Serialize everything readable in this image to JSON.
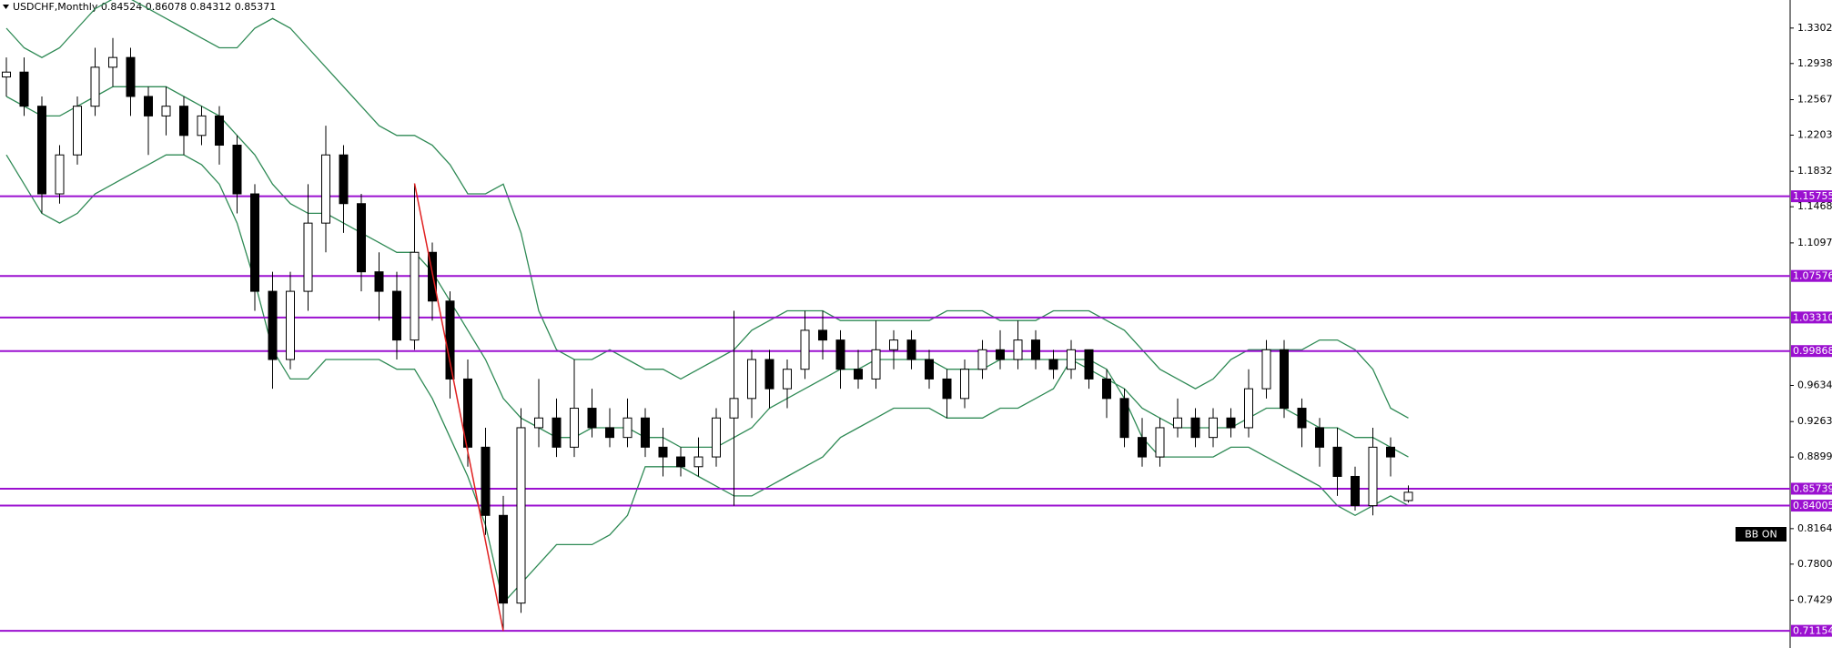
{
  "chart_data": {
    "type": "candlestick",
    "title": "USDCHF,Monthly  0.84524 0.86078 0.84312 0.85371",
    "button": "BB ON",
    "ylim": [
      0.6939,
      1.359
    ],
    "yticks": [
      {
        "value": 1.3302,
        "label": "1.33020"
      },
      {
        "value": 1.2938,
        "label": "1.29380"
      },
      {
        "value": 1.2567,
        "label": "1.25670"
      },
      {
        "value": 1.2203,
        "label": "1.22030"
      },
      {
        "value": 1.1832,
        "label": "1.18320"
      },
      {
        "value": 1.1468,
        "label": "1.14680"
      },
      {
        "value": 1.1097,
        "label": "1.10970"
      },
      {
        "value": 0.9634,
        "label": "0.96340"
      },
      {
        "value": 0.9263,
        "label": "0.92630"
      },
      {
        "value": 0.8899,
        "label": "0.88990"
      },
      {
        "value": 0.8164,
        "label": "0.81640"
      },
      {
        "value": 0.78,
        "label": "0.78000"
      },
      {
        "value": 0.7429,
        "label": "0.74290"
      }
    ],
    "level_color": "#9b10d0",
    "levels": [
      1.15755,
      1.07576,
      {
        "value": 1.0331,
        "label": "1.03310"
      },
      0.99868,
      0.85739,
      0.84005,
      0.71154
    ],
    "trendline": {
      "color": "#e02020",
      "points": [
        [
          23,
          1.1708
        ],
        [
          28,
          0.71154
        ]
      ]
    },
    "band_color": "#2f8a55",
    "candles": [
      [
        1.28,
        1.3,
        1.26,
        1.285
      ],
      [
        1.285,
        1.3,
        1.24,
        1.25
      ],
      [
        1.25,
        1.26,
        1.14,
        1.16
      ],
      [
        1.16,
        1.21,
        1.15,
        1.2
      ],
      [
        1.2,
        1.26,
        1.19,
        1.25
      ],
      [
        1.25,
        1.31,
        1.24,
        1.29
      ],
      [
        1.29,
        1.32,
        1.27,
        1.3
      ],
      [
        1.3,
        1.31,
        1.24,
        1.26
      ],
      [
        1.26,
        1.27,
        1.2,
        1.24
      ],
      [
        1.24,
        1.27,
        1.22,
        1.25
      ],
      [
        1.25,
        1.26,
        1.2,
        1.22
      ],
      [
        1.22,
        1.25,
        1.21,
        1.24
      ],
      [
        1.24,
        1.25,
        1.19,
        1.21
      ],
      [
        1.21,
        1.22,
        1.14,
        1.16
      ],
      [
        1.16,
        1.17,
        1.04,
        1.06
      ],
      [
        1.06,
        1.08,
        0.96,
        0.99
      ],
      [
        0.99,
        1.08,
        0.98,
        1.06
      ],
      [
        1.06,
        1.17,
        1.04,
        1.13
      ],
      [
        1.13,
        1.23,
        1.1,
        1.2
      ],
      [
        1.2,
        1.21,
        1.12,
        1.15
      ],
      [
        1.15,
        1.16,
        1.06,
        1.08
      ],
      [
        1.08,
        1.1,
        1.03,
        1.06
      ],
      [
        1.06,
        1.08,
        0.99,
        1.01
      ],
      [
        1.01,
        1.1708,
        1.0,
        1.1
      ],
      [
        1.1,
        1.11,
        1.03,
        1.05
      ],
      [
        1.05,
        1.06,
        0.95,
        0.97
      ],
      [
        0.97,
        0.99,
        0.88,
        0.9
      ],
      [
        0.9,
        0.92,
        0.81,
        0.83
      ],
      [
        0.83,
        0.85,
        0.71154,
        0.74
      ],
      [
        0.74,
        0.94,
        0.73,
        0.92
      ],
      [
        0.92,
        0.97,
        0.9,
        0.93
      ],
      [
        0.93,
        0.95,
        0.89,
        0.9
      ],
      [
        0.9,
        0.99,
        0.89,
        0.94
      ],
      [
        0.94,
        0.96,
        0.91,
        0.92
      ],
      [
        0.92,
        0.94,
        0.9,
        0.91
      ],
      [
        0.91,
        0.95,
        0.9,
        0.93
      ],
      [
        0.93,
        0.94,
        0.89,
        0.9
      ],
      [
        0.9,
        0.92,
        0.87,
        0.89
      ],
      [
        0.89,
        0.9,
        0.87,
        0.88
      ],
      [
        0.88,
        0.91,
        0.87,
        0.89
      ],
      [
        0.89,
        0.94,
        0.88,
        0.93
      ],
      [
        0.93,
        1.04,
        0.84,
        0.95
      ],
      [
        0.95,
        1.0,
        0.93,
        0.99
      ],
      [
        0.99,
        1.0,
        0.94,
        0.96
      ],
      [
        0.96,
        0.99,
        0.94,
        0.98
      ],
      [
        0.98,
        1.04,
        0.97,
        1.02
      ],
      [
        1.02,
        1.04,
        0.99,
        1.01
      ],
      [
        1.01,
        1.02,
        0.96,
        0.98
      ],
      [
        0.98,
        1.0,
        0.96,
        0.97
      ],
      [
        0.97,
        1.03,
        0.96,
        1.0
      ],
      [
        1.0,
        1.02,
        0.98,
        1.01
      ],
      [
        1.01,
        1.02,
        0.98,
        0.99
      ],
      [
        0.99,
        1.0,
        0.96,
        0.97
      ],
      [
        0.97,
        0.98,
        0.93,
        0.95
      ],
      [
        0.95,
        0.99,
        0.94,
        0.98
      ],
      [
        0.98,
        1.01,
        0.97,
        1.0
      ],
      [
        1.0,
        1.02,
        0.98,
        0.99
      ],
      [
        0.99,
        1.03,
        0.98,
        1.01
      ],
      [
        1.01,
        1.02,
        0.98,
        0.99
      ],
      [
        0.99,
        1.0,
        0.97,
        0.98
      ],
      [
        0.98,
        1.01,
        0.97,
        1.0
      ],
      [
        1.0,
        1.0,
        0.96,
        0.97
      ],
      [
        0.97,
        0.98,
        0.93,
        0.95
      ],
      [
        0.95,
        0.96,
        0.9,
        0.91
      ],
      [
        0.91,
        0.93,
        0.88,
        0.89
      ],
      [
        0.89,
        0.93,
        0.88,
        0.92
      ],
      [
        0.92,
        0.95,
        0.91,
        0.93
      ],
      [
        0.93,
        0.94,
        0.9,
        0.91
      ],
      [
        0.91,
        0.94,
        0.9,
        0.93
      ],
      [
        0.93,
        0.94,
        0.91,
        0.92
      ],
      [
        0.92,
        0.98,
        0.91,
        0.96
      ],
      [
        0.96,
        1.01,
        0.95,
        1.0
      ],
      [
        1.0,
        1.01,
        0.93,
        0.94
      ],
      [
        0.94,
        0.95,
        0.9,
        0.92
      ],
      [
        0.92,
        0.93,
        0.88,
        0.9
      ],
      [
        0.9,
        0.92,
        0.85,
        0.87
      ],
      [
        0.87,
        0.88,
        0.835,
        0.84
      ],
      [
        0.84,
        0.92,
        0.83,
        0.9
      ],
      [
        0.9,
        0.91,
        0.87,
        0.89
      ],
      [
        0.84524,
        0.86078,
        0.84312,
        0.85371
      ]
    ],
    "bands": {
      "upper": [
        1.33,
        1.31,
        1.3,
        1.31,
        1.33,
        1.35,
        1.36,
        1.36,
        1.35,
        1.34,
        1.33,
        1.32,
        1.31,
        1.31,
        1.33,
        1.34,
        1.33,
        1.31,
        1.29,
        1.27,
        1.25,
        1.23,
        1.22,
        1.22,
        1.21,
        1.19,
        1.16,
        1.16,
        1.17,
        1.12,
        1.04,
        1.0,
        0.99,
        0.99,
        1.0,
        0.99,
        0.98,
        0.98,
        0.97,
        0.98,
        0.99,
        1.0,
        1.02,
        1.03,
        1.04,
        1.04,
        1.04,
        1.03,
        1.03,
        1.03,
        1.03,
        1.03,
        1.03,
        1.04,
        1.04,
        1.04,
        1.03,
        1.03,
        1.03,
        1.04,
        1.04,
        1.04,
        1.03,
        1.02,
        1.0,
        0.98,
        0.97,
        0.96,
        0.97,
        0.99,
        1.0,
        1.0,
        1.0,
        1.0,
        1.01,
        1.01,
        1.0,
        0.98,
        0.94,
        0.93
      ],
      "middle": [
        1.26,
        1.25,
        1.24,
        1.24,
        1.25,
        1.26,
        1.27,
        1.27,
        1.27,
        1.27,
        1.26,
        1.25,
        1.24,
        1.22,
        1.2,
        1.17,
        1.15,
        1.14,
        1.14,
        1.13,
        1.12,
        1.11,
        1.1,
        1.1,
        1.08,
        1.05,
        1.02,
        0.99,
        0.95,
        0.93,
        0.92,
        0.91,
        0.91,
        0.92,
        0.92,
        0.92,
        0.91,
        0.91,
        0.9,
        0.9,
        0.9,
        0.91,
        0.92,
        0.94,
        0.95,
        0.96,
        0.97,
        0.98,
        0.98,
        0.99,
        0.99,
        0.99,
        0.99,
        0.98,
        0.98,
        0.98,
        0.99,
        0.99,
        0.99,
        0.99,
        0.99,
        0.98,
        0.97,
        0.96,
        0.94,
        0.93,
        0.92,
        0.92,
        0.92,
        0.92,
        0.93,
        0.94,
        0.94,
        0.93,
        0.92,
        0.92,
        0.91,
        0.91,
        0.9,
        0.89
      ],
      "lower": [
        1.2,
        1.17,
        1.14,
        1.13,
        1.14,
        1.16,
        1.17,
        1.18,
        1.19,
        1.2,
        1.2,
        1.19,
        1.17,
        1.13,
        1.07,
        1.0,
        0.97,
        0.97,
        0.99,
        0.99,
        0.99,
        0.99,
        0.98,
        0.98,
        0.95,
        0.91,
        0.87,
        0.82,
        0.74,
        0.76,
        0.78,
        0.8,
        0.8,
        0.8,
        0.81,
        0.83,
        0.88,
        0.88,
        0.88,
        0.87,
        0.86,
        0.85,
        0.85,
        0.86,
        0.87,
        0.88,
        0.89,
        0.91,
        0.92,
        0.93,
        0.94,
        0.94,
        0.94,
        0.93,
        0.93,
        0.93,
        0.94,
        0.94,
        0.95,
        0.96,
        0.99,
        0.99,
        0.98,
        0.95,
        0.91,
        0.89,
        0.89,
        0.89,
        0.89,
        0.9,
        0.9,
        0.89,
        0.88,
        0.87,
        0.86,
        0.84,
        0.83,
        0.84,
        0.85,
        0.84
      ]
    }
  }
}
